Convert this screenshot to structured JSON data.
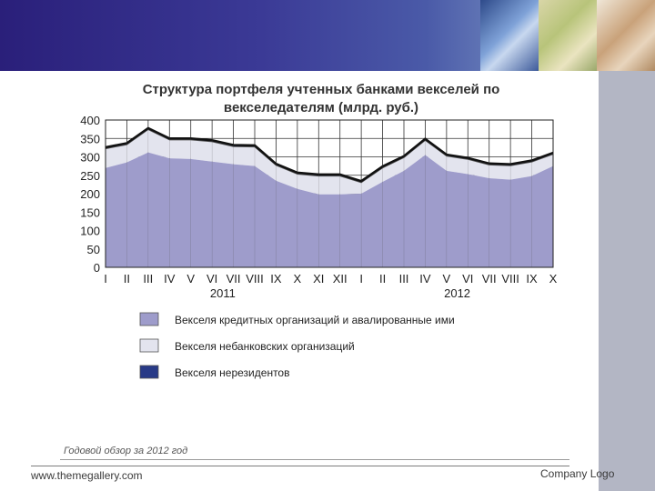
{
  "footer": {
    "url": "www.themegallery.com",
    "logo": "Company Logo"
  },
  "source_note": "Годовой обзор за 2012 год",
  "chart_data": {
    "type": "area",
    "title_lines": [
      "Структура портфеля учтенных банками векселей по",
      "векселедателям (млрд. руб.)"
    ],
    "xlabel": "",
    "ylabel": "",
    "ylim": [
      0,
      400
    ],
    "y_ticks": [
      0,
      50,
      100,
      150,
      200,
      250,
      300,
      350,
      400
    ],
    "categories": [
      "I",
      "II",
      "III",
      "IV",
      "V",
      "VI",
      "VII",
      "VIII",
      "IX",
      "X",
      "XI",
      "XII",
      "I",
      "II",
      "III",
      "IV",
      "V",
      "VI",
      "VII",
      "VIII",
      "IX",
      "X"
    ],
    "year_labels": [
      {
        "label": "2011",
        "category_index": 5.5
      },
      {
        "label": "2012",
        "category_index": 16.5
      }
    ],
    "grid": true,
    "stacked": true,
    "series": [
      {
        "name": "Векселя кредитных организаций и авалированные ими",
        "color": "#9e9ccb",
        "values": [
          270,
          285,
          312,
          296,
          294,
          287,
          280,
          275,
          235,
          213,
          198,
          198,
          200,
          232,
          262,
          305,
          262,
          253,
          242,
          238,
          248,
          275
        ]
      },
      {
        "name": "Векселя небанковских организаций",
        "color": "#e3e4ee",
        "values": [
          52,
          48,
          62,
          50,
          52,
          54,
          48,
          52,
          42,
          40,
          50,
          50,
          30,
          38,
          36,
          40,
          40,
          40,
          36,
          38,
          38,
          32
        ]
      },
      {
        "name": "Векселя нерезидентов",
        "color": "#283a87",
        "values": [
          4,
          4,
          4,
          4,
          4,
          4,
          4,
          4,
          4,
          4,
          4,
          4,
          4,
          4,
          4,
          4,
          4,
          4,
          4,
          4,
          4,
          4
        ]
      }
    ]
  }
}
